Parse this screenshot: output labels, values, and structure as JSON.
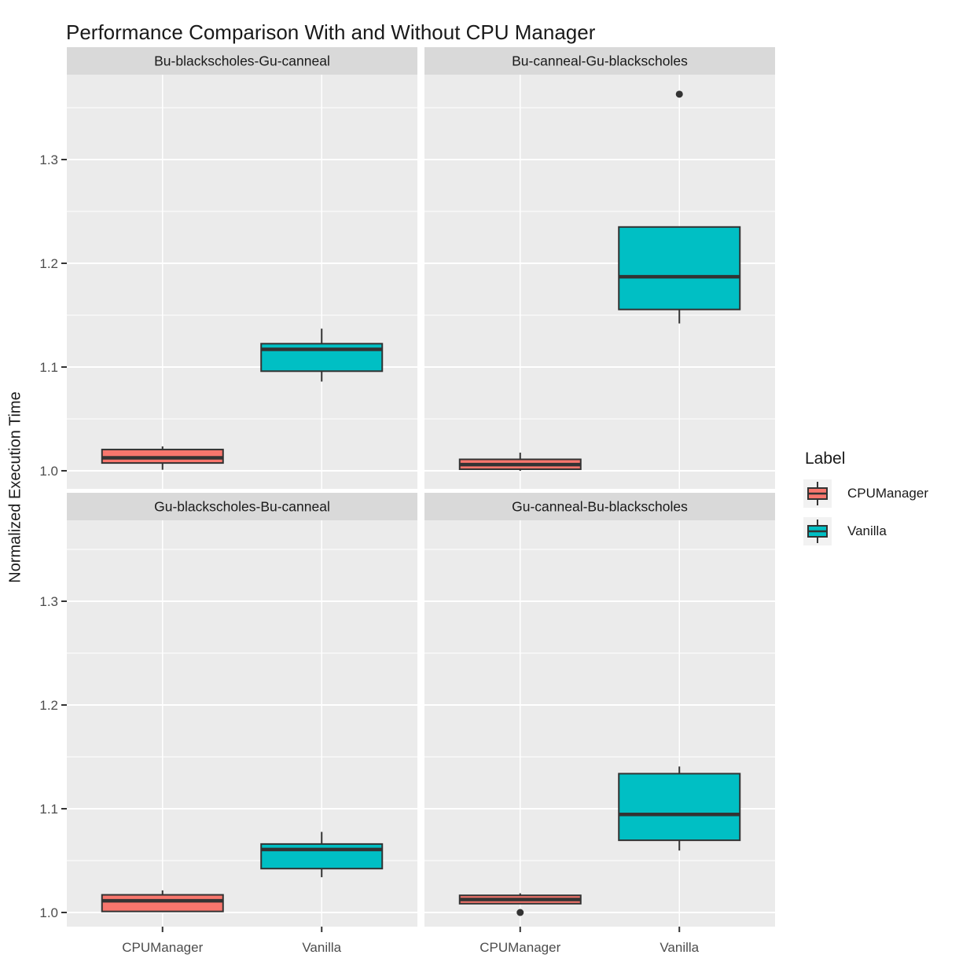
{
  "chart_data": {
    "type": "boxplot",
    "title": "Performance Comparison With and Without CPU Manager",
    "ylabel": "Normalized Execution Time",
    "xlabel": "",
    "categories": [
      "CPUManager",
      "Vanilla"
    ],
    "y_ticks": [
      1.0,
      1.1,
      1.2,
      1.3
    ],
    "y_tick_labels": [
      "1.0",
      "1.1",
      "1.2",
      "1.3"
    ],
    "y_minor_ticks": [
      1.05,
      1.15,
      1.25,
      1.35
    ],
    "ylim": [
      0.982,
      1.382
    ],
    "grid": "on",
    "facet_layout": "2x2",
    "legend": {
      "title": "Label",
      "position": "right",
      "items": [
        {
          "label": "CPUManager",
          "color": "#F8766D"
        },
        {
          "label": "Vanilla",
          "color": "#00BFC4"
        }
      ]
    },
    "facets": [
      {
        "label": "Bu-blackscholes-Gu-canneal",
        "boxes": [
          {
            "series": "CPUManager",
            "whislo": 1.001,
            "q1": 1.0075,
            "med": 1.0125,
            "q3": 1.0205,
            "whishi": 1.0235,
            "outliers": []
          },
          {
            "series": "Vanilla",
            "whislo": 1.086,
            "q1": 1.096,
            "med": 1.117,
            "q3": 1.1225,
            "whishi": 1.137,
            "outliers": []
          }
        ]
      },
      {
        "label": "Bu-canneal-Gu-blackscholes",
        "boxes": [
          {
            "series": "CPUManager",
            "whislo": 1.0,
            "q1": 1.0015,
            "med": 1.006,
            "q3": 1.011,
            "whishi": 1.0175,
            "outliers": []
          },
          {
            "series": "Vanilla",
            "whislo": 1.142,
            "q1": 1.1555,
            "med": 1.187,
            "q3": 1.235,
            "whishi": 1.235,
            "outliers": [
              1.363
            ]
          }
        ]
      },
      {
        "label": "Gu-blackscholes-Bu-canneal",
        "boxes": [
          {
            "series": "CPUManager",
            "whislo": 1.001,
            "q1": 1.001,
            "med": 1.0113,
            "q3": 1.017,
            "whishi": 1.0213,
            "outliers": []
          },
          {
            "series": "Vanilla",
            "whislo": 1.034,
            "q1": 1.0423,
            "med": 1.0607,
            "q3": 1.066,
            "whishi": 1.0777,
            "outliers": []
          }
        ]
      },
      {
        "label": "Gu-canneal-Bu-blackscholes",
        "boxes": [
          {
            "series": "CPUManager",
            "whislo": 1.0085,
            "q1": 1.0085,
            "med": 1.0125,
            "q3": 1.0165,
            "whishi": 1.0185,
            "outliers": [
              1.0
            ]
          },
          {
            "series": "Vanilla",
            "whislo": 1.0597,
            "q1": 1.0696,
            "med": 1.0945,
            "q3": 1.1338,
            "whishi": 1.1407,
            "outliers": []
          }
        ]
      }
    ],
    "style": {
      "panel_background": "#EBEBEB",
      "strip_background": "#D9D9D9",
      "strip_text_color": "#1A1A1A",
      "grid_color": "#FFFFFF",
      "box_stroke": "#333333",
      "outlier_color": "#333333",
      "tick_color": "#333333",
      "tick_label_color": "#4D4D4D",
      "title_color": "#1A1A1A",
      "legend_key_background": "#F2F2F2"
    }
  }
}
